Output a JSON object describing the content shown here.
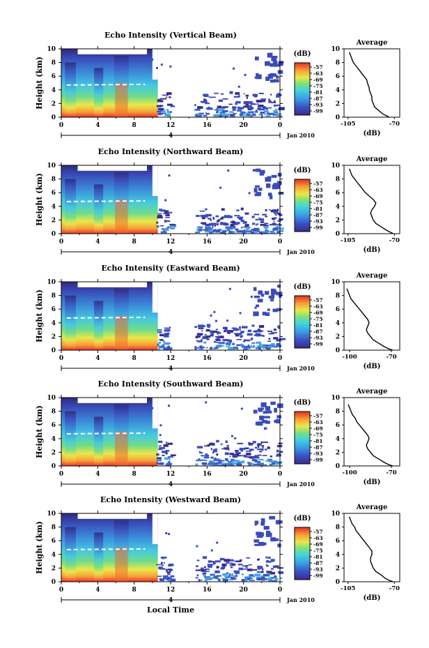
{
  "figure": {
    "bottom_xlabel": "Local Time",
    "date_label": "Jan 2010",
    "day_label": "4"
  },
  "chart_data": [
    {
      "type": "heatmap",
      "title": "Echo Intensity (Vertical Beam)",
      "ylabel": "Height (km)",
      "xticks": [
        "0",
        "4",
        "8",
        "12",
        "16",
        "20",
        "0"
      ],
      "yticks": [
        "0",
        "2",
        "4",
        "6",
        "8",
        "10"
      ],
      "ylim": [
        0,
        10
      ],
      "xlim": [
        0,
        24
      ],
      "colorbar": {
        "label": "(dB)",
        "ticks": [
          "-57",
          "-63",
          "-69",
          "-75",
          "-81",
          "-87",
          "-93",
          "-99"
        ]
      }
    },
    {
      "type": "heatmap",
      "title": "Echo Intensity (Northward Beam)",
      "ylabel": "Height (km)",
      "xticks": [
        "0",
        "4",
        "8",
        "12",
        "16",
        "20",
        "0"
      ],
      "yticks": [
        "0",
        "2",
        "4",
        "6",
        "8",
        "10"
      ],
      "ylim": [
        0,
        10
      ],
      "xlim": [
        0,
        24
      ],
      "colorbar": {
        "label": "(dB)",
        "ticks": [
          "-57",
          "-63",
          "-69",
          "-75",
          "-81",
          "-87",
          "-93",
          "-99"
        ]
      }
    },
    {
      "type": "heatmap",
      "title": "Echo Intensity (Eastward Beam)",
      "ylabel": "Height (km)",
      "xticks": [
        "0",
        "4",
        "8",
        "12",
        "16",
        "20",
        "0"
      ],
      "yticks": [
        "0",
        "2",
        "4",
        "6",
        "8",
        "10"
      ],
      "ylim": [
        0,
        10
      ],
      "xlim": [
        0,
        24
      ],
      "colorbar": {
        "label": "(dB)",
        "ticks": [
          "-57",
          "-63",
          "-69",
          "-75",
          "-81",
          "-87",
          "-93",
          "-99"
        ]
      }
    },
    {
      "type": "heatmap",
      "title": "Echo Intensity (Southward Beam)",
      "ylabel": "Height (km)",
      "xticks": [
        "0",
        "4",
        "8",
        "12",
        "16",
        "20",
        "0"
      ],
      "yticks": [
        "0",
        "2",
        "4",
        "6",
        "8",
        "10"
      ],
      "ylim": [
        0,
        10
      ],
      "xlim": [
        0,
        24
      ],
      "colorbar": {
        "label": "(dB)",
        "ticks": [
          "-57",
          "-63",
          "-69",
          "-75",
          "-81",
          "-87",
          "-93",
          "-99"
        ]
      }
    },
    {
      "type": "heatmap",
      "title": "Echo Intensity (Westward Beam)",
      "ylabel": "Height (km)",
      "xticks": [
        "0",
        "4",
        "8",
        "12",
        "16",
        "20",
        "0"
      ],
      "yticks": [
        "0",
        "2",
        "4",
        "6",
        "8",
        "10"
      ],
      "ylim": [
        0,
        10
      ],
      "xlim": [
        0,
        24
      ],
      "colorbar": {
        "label": "(dB)",
        "ticks": [
          "-57",
          "-63",
          "-69",
          "-75",
          "-81",
          "-87",
          "-93",
          "-99"
        ]
      }
    },
    {
      "type": "line",
      "title": "Average",
      "xlabel": "(dB)",
      "xticks": [
        "-105",
        "-70"
      ],
      "yticks": [
        "0",
        "2",
        "4",
        "6",
        "8",
        "10"
      ],
      "xlim": [
        -108,
        -66
      ],
      "ylim": [
        0,
        10
      ],
      "x": [
        -74,
        -76,
        -79,
        -82,
        -85,
        -86,
        -87,
        -87,
        -88,
        -89,
        -89,
        -90,
        -91,
        -93,
        -95,
        -97,
        -99,
        -101,
        -102,
        -103,
        -104
      ],
      "y": [
        0.0,
        0.2,
        0.5,
        1.0,
        1.5,
        2.0,
        2.5,
        3.0,
        3.5,
        4.0,
        4.3,
        4.8,
        5.5,
        6.0,
        6.5,
        7.0,
        7.5,
        8.0,
        8.5,
        9.0,
        9.5
      ]
    },
    {
      "type": "line",
      "title": "Average",
      "xlabel": "(dB)",
      "xticks": [
        "-105",
        "-70"
      ],
      "yticks": [
        "0",
        "2",
        "4",
        "6",
        "8",
        "10"
      ],
      "xlim": [
        -108,
        -66
      ],
      "ylim": [
        0,
        10
      ],
      "x": [
        -71,
        -73,
        -76,
        -80,
        -84,
        -86,
        -87,
        -88,
        -87,
        -85,
        -84,
        -86,
        -89,
        -92,
        -94,
        -96,
        -98,
        -100,
        -102,
        -103,
        -104
      ],
      "y": [
        0.0,
        0.2,
        0.5,
        1.0,
        1.5,
        2.0,
        2.5,
        3.0,
        3.5,
        4.0,
        4.5,
        5.0,
        5.5,
        6.0,
        6.5,
        7.0,
        7.5,
        8.0,
        8.5,
        9.0,
        9.5
      ]
    },
    {
      "type": "line",
      "title": "Average",
      "xlabel": "(dB)",
      "xticks": [
        "-100",
        "-70"
      ],
      "yticks": [
        "0",
        "2",
        "4",
        "6",
        "8",
        "10"
      ],
      "xlim": [
        -104,
        -64
      ],
      "ylim": [
        0,
        10
      ],
      "x": [
        -69,
        -72,
        -75,
        -79,
        -83,
        -85,
        -87,
        -88,
        -87,
        -86,
        -87,
        -89,
        -91,
        -93,
        -95,
        -97,
        -99,
        -100,
        -101,
        -102
      ],
      "y": [
        0.0,
        0.2,
        0.5,
        1.0,
        1.5,
        2.0,
        2.5,
        3.0,
        3.5,
        4.0,
        4.5,
        5.0,
        5.5,
        6.0,
        6.5,
        7.0,
        7.5,
        8.0,
        8.5,
        9.0
      ]
    },
    {
      "type": "line",
      "title": "Average",
      "xlabel": "(dB)",
      "xticks": [
        "-100",
        "-70"
      ],
      "yticks": [
        "0",
        "2",
        "4",
        "6",
        "8",
        "10"
      ],
      "xlim": [
        -104,
        -64
      ],
      "ylim": [
        0,
        10
      ],
      "x": [
        -69,
        -72,
        -75,
        -79,
        -83,
        -85,
        -87,
        -88,
        -87,
        -86,
        -87,
        -89,
        -91,
        -93,
        -95,
        -96,
        -98,
        -99,
        -100,
        -101
      ],
      "y": [
        0.0,
        0.2,
        0.5,
        1.0,
        1.5,
        2.0,
        2.5,
        3.0,
        3.5,
        4.0,
        4.5,
        5.0,
        5.5,
        6.0,
        6.5,
        7.0,
        7.5,
        8.0,
        8.5,
        9.0
      ]
    },
    {
      "type": "line",
      "title": "Average",
      "xlabel": "(dB)",
      "xticks": [
        "-105",
        "-70"
      ],
      "yticks": [
        "0",
        "2",
        "4",
        "6",
        "8",
        "10"
      ],
      "xlim": [
        -108,
        -66
      ],
      "ylim": [
        0,
        10
      ],
      "x": [
        -71,
        -74,
        -77,
        -80,
        -84,
        -86,
        -87,
        -88,
        -88,
        -87,
        -87,
        -89,
        -91,
        -93,
        -95,
        -97,
        -99,
        -100,
        -102,
        -103,
        -104
      ],
      "y": [
        0.0,
        0.2,
        0.5,
        1.0,
        1.5,
        2.0,
        2.5,
        3.0,
        3.5,
        4.0,
        4.5,
        5.0,
        5.5,
        6.0,
        6.5,
        7.0,
        7.5,
        8.0,
        8.5,
        9.0,
        9.5
      ]
    }
  ]
}
